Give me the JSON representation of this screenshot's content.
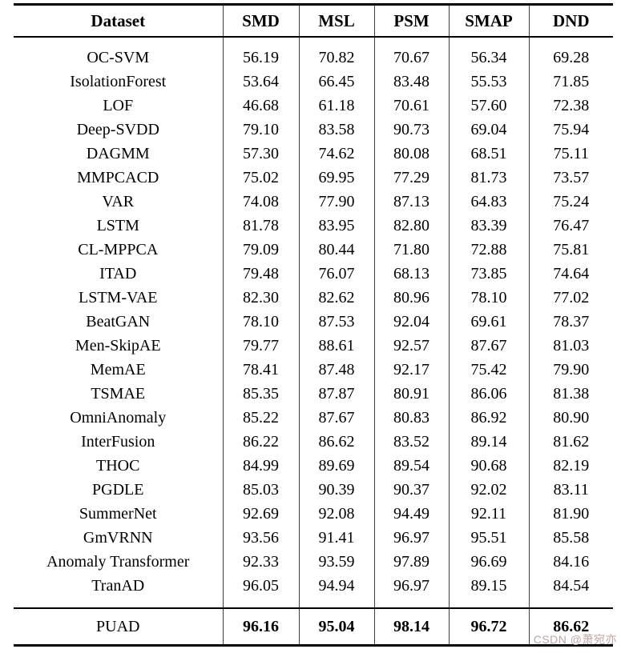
{
  "table": {
    "columns": [
      "Dataset",
      "SMD",
      "MSL",
      "PSM",
      "SMAP",
      "DND"
    ],
    "rows": [
      {
        "method": "OC-SVM",
        "values": [
          "56.19",
          "70.82",
          "70.67",
          "56.34",
          "69.28"
        ]
      },
      {
        "method": "IsolationForest",
        "values": [
          "53.64",
          "66.45",
          "83.48",
          "55.53",
          "71.85"
        ]
      },
      {
        "method": "LOF",
        "values": [
          "46.68",
          "61.18",
          "70.61",
          "57.60",
          "72.38"
        ]
      },
      {
        "method": "Deep-SVDD",
        "values": [
          "79.10",
          "83.58",
          "90.73",
          "69.04",
          "75.94"
        ]
      },
      {
        "method": "DAGMM",
        "values": [
          "57.30",
          "74.62",
          "80.08",
          "68.51",
          "75.11"
        ]
      },
      {
        "method": "MMPCACD",
        "values": [
          "75.02",
          "69.95",
          "77.29",
          "81.73",
          "73.57"
        ]
      },
      {
        "method": "VAR",
        "values": [
          "74.08",
          "77.90",
          "87.13",
          "64.83",
          "75.24"
        ]
      },
      {
        "method": "LSTM",
        "values": [
          "81.78",
          "83.95",
          "82.80",
          "83.39",
          "76.47"
        ]
      },
      {
        "method": "CL-MPPCA",
        "values": [
          "79.09",
          "80.44",
          "71.80",
          "72.88",
          "75.81"
        ]
      },
      {
        "method": "ITAD",
        "values": [
          "79.48",
          "76.07",
          "68.13",
          "73.85",
          "74.64"
        ]
      },
      {
        "method": "LSTM-VAE",
        "values": [
          "82.30",
          "82.62",
          "80.96",
          "78.10",
          "77.02"
        ]
      },
      {
        "method": "BeatGAN",
        "values": [
          "78.10",
          "87.53",
          "92.04",
          "69.61",
          "78.37"
        ]
      },
      {
        "method": "Men-SkipAE",
        "values": [
          "79.77",
          "88.61",
          "92.57",
          "87.67",
          "81.03"
        ]
      },
      {
        "method": "MemAE",
        "values": [
          "78.41",
          "87.48",
          "92.17",
          "75.42",
          "79.90"
        ]
      },
      {
        "method": "TSMAE",
        "values": [
          "85.35",
          "87.87",
          "80.91",
          "86.06",
          "81.38"
        ]
      },
      {
        "method": "OmniAnomaly",
        "values": [
          "85.22",
          "87.67",
          "80.83",
          "86.92",
          "80.90"
        ]
      },
      {
        "method": "InterFusion",
        "values": [
          "86.22",
          "86.62",
          "83.52",
          "89.14",
          "81.62"
        ]
      },
      {
        "method": "THOC",
        "values": [
          "84.99",
          "89.69",
          "89.54",
          "90.68",
          "82.19"
        ]
      },
      {
        "method": "PGDLE",
        "values": [
          "85.03",
          "90.39",
          "90.37",
          "92.02",
          "83.11"
        ]
      },
      {
        "method": "SummerNet",
        "values": [
          "92.69",
          "92.08",
          "94.49",
          "92.11",
          "81.90"
        ]
      },
      {
        "method": "GmVRNN",
        "values": [
          "93.56",
          "91.41",
          "96.97",
          "95.51",
          "85.58"
        ]
      },
      {
        "method": "Anomaly Transformer",
        "values": [
          "92.33",
          "93.59",
          "97.89",
          "96.69",
          "84.16"
        ]
      },
      {
        "method": "TranAD",
        "values": [
          "96.05",
          "94.94",
          "96.97",
          "89.15",
          "84.54"
        ]
      }
    ],
    "footer_row": {
      "method": "PUAD",
      "values": [
        "96.16",
        "95.04",
        "98.14",
        "96.72",
        "86.62"
      ]
    }
  },
  "watermark": {
    "text": "CSDN @萧宛亦",
    "color": "#c2a3a3"
  },
  "colors": {
    "text": "#000000",
    "rule": "#000000",
    "separator": "#3d3d3d",
    "background": "#ffffff"
  }
}
